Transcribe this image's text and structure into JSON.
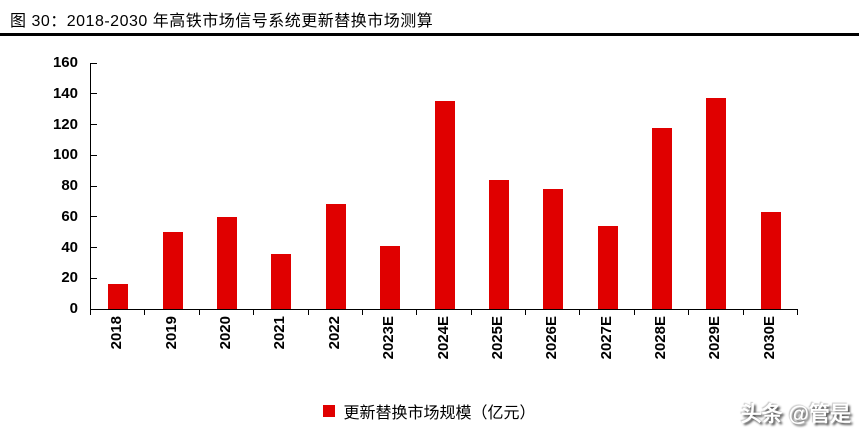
{
  "title": "图 30：2018-2030 年高铁市场信号系统更新替换市场测算",
  "watermark": "头条 @管是",
  "legend": {
    "label": "更新替换市场规模（亿元）",
    "marker_color": "#e00000"
  },
  "colors": {
    "bar": "#e00000",
    "axis": "#000000",
    "title_rule": "#000000"
  },
  "chart_data": {
    "type": "bar",
    "title": "图 30：2018-2030 年高铁市场信号系统更新替换市场测算",
    "categories": [
      "2018",
      "2019",
      "2020",
      "2021",
      "2022",
      "2023E",
      "2024E",
      "2025E",
      "2026E",
      "2027E",
      "2028E",
      "2029E",
      "2030E"
    ],
    "series": [
      {
        "name": "更新替换市场规模（亿元）",
        "values": [
          16,
          50,
          60,
          36,
          68,
          41,
          135,
          84,
          78,
          54,
          118,
          137,
          63
        ]
      }
    ],
    "xlabel": "",
    "ylabel": "",
    "ylim": [
      0,
      160
    ],
    "yticks": [
      0,
      20,
      40,
      60,
      80,
      100,
      120,
      140,
      160
    ],
    "grid": false,
    "legend_position": "bottom",
    "bar_color": "#e00000",
    "xlabel_rotation": 90
  }
}
